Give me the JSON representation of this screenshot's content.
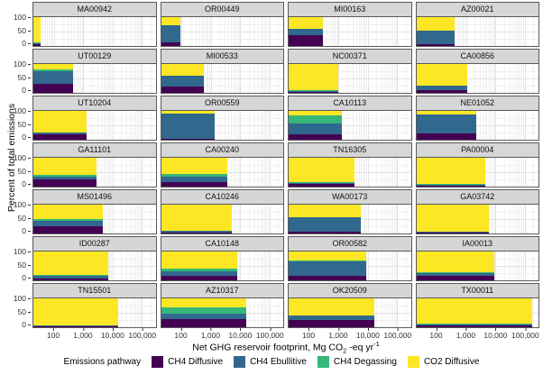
{
  "chart_data": {
    "type": "bar",
    "variant": "faceted-horizontal-stacked",
    "ylabel": "Percent of total emissions",
    "xlabel": "Net GHG reservoir footprint, Mg CO2 -eq yr-1",
    "xlabel_parts": {
      "prefix": "Net GHG reservoir footprint, Mg CO",
      "sub": "2",
      "mid": " -eq yr",
      "sup": "-1"
    },
    "x_scale": {
      "type": "log",
      "min": 20,
      "max": 300000,
      "ticks": [
        100,
        1000,
        10000,
        100000
      ],
      "tick_labels": [
        "100",
        "1,000",
        "10,000",
        "100,000"
      ],
      "grid": "on"
    },
    "y_scale": {
      "min": 0,
      "max": 100,
      "ticks": [
        0,
        50,
        100
      ],
      "tick_labels": [
        "100",
        "50",
        "0"
      ],
      "minor_ticks": [
        25,
        75
      ]
    },
    "legend": {
      "title": "Emissions pathway",
      "position": "bottom",
      "items": [
        {
          "key": "ch4_diffusive",
          "label": "CH4 Diffusive",
          "color": "#440154"
        },
        {
          "key": "ch4_ebullitive",
          "label": "CH4 Ebullitive",
          "color": "#31688E"
        },
        {
          "key": "ch4_degassing",
          "label": "CH4 Degassing",
          "color": "#35B779"
        },
        {
          "key": "co2_diffusive",
          "label": "CO2 Diffusive",
          "color": "#FDE725"
        }
      ]
    },
    "stack_order_bottom_to_top": [
      "ch4_diffusive",
      "ch4_ebullitive",
      "ch4_degassing",
      "co2_diffusive"
    ],
    "facets": [
      {
        "id": "MA00942",
        "footprint": 35,
        "stack": {
          "ch4_diffusive": 5,
          "ch4_ebullitive": 4,
          "ch4_degassing": 4,
          "co2_diffusive": 87
        }
      },
      {
        "id": "OR00449",
        "footprint": 90,
        "stack": {
          "ch4_diffusive": 11,
          "ch4_ebullitive": 62,
          "ch4_degassing": 0,
          "co2_diffusive": 27
        }
      },
      {
        "id": "MI00163",
        "footprint": 290,
        "stack": {
          "ch4_diffusive": 38,
          "ch4_ebullitive": 22,
          "ch4_degassing": 0,
          "co2_diffusive": 40
        }
      },
      {
        "id": "AZ00021",
        "footprint": 420,
        "stack": {
          "ch4_diffusive": 7,
          "ch4_ebullitive": 45,
          "ch4_degassing": 0,
          "co2_diffusive": 48
        }
      },
      {
        "id": "UT00129",
        "footprint": 450,
        "stack": {
          "ch4_diffusive": 30,
          "ch4_ebullitive": 44,
          "ch4_degassing": 7,
          "co2_diffusive": 19
        }
      },
      {
        "id": "MI00533",
        "footprint": 600,
        "stack": {
          "ch4_diffusive": 22,
          "ch4_ebullitive": 38,
          "ch4_degassing": 0,
          "co2_diffusive": 40
        }
      },
      {
        "id": "NC00371",
        "footprint": 1000,
        "stack": {
          "ch4_diffusive": 4,
          "ch4_ebullitive": 3,
          "ch4_degassing": 3,
          "co2_diffusive": 90
        }
      },
      {
        "id": "CA00856",
        "footprint": 1100,
        "stack": {
          "ch4_diffusive": 9,
          "ch4_ebullitive": 16,
          "ch4_degassing": 0,
          "co2_diffusive": 75
        }
      },
      {
        "id": "UT10204",
        "footprint": 1300,
        "stack": {
          "ch4_diffusive": 20,
          "ch4_ebullitive": 6,
          "ch4_degassing": 0,
          "co2_diffusive": 74
        }
      },
      {
        "id": "OR00559",
        "footprint": 1400,
        "stack": {
          "ch4_diffusive": 2,
          "ch4_ebullitive": 90,
          "ch4_degassing": 0,
          "co2_diffusive": 8
        }
      },
      {
        "id": "CA10113",
        "footprint": 1300,
        "stack": {
          "ch4_diffusive": 20,
          "ch4_ebullitive": 35,
          "ch4_degassing": 30,
          "co2_diffusive": 15
        }
      },
      {
        "id": "NE01052",
        "footprint": 2300,
        "stack": {
          "ch4_diffusive": 22,
          "ch4_ebullitive": 66,
          "ch4_degassing": 0,
          "co2_diffusive": 12
        }
      },
      {
        "id": "GA11101",
        "footprint": 2800,
        "stack": {
          "ch4_diffusive": 24,
          "ch4_ebullitive": 10,
          "ch4_degassing": 8,
          "co2_diffusive": 58
        }
      },
      {
        "id": "CA00240",
        "footprint": 3700,
        "stack": {
          "ch4_diffusive": 16,
          "ch4_ebullitive": 18,
          "ch4_degassing": 10,
          "co2_diffusive": 56
        }
      },
      {
        "id": "TN16305",
        "footprint": 3500,
        "stack": {
          "ch4_diffusive": 8,
          "ch4_ebullitive": 3,
          "ch4_degassing": 5,
          "co2_diffusive": 84
        }
      },
      {
        "id": "PA00004",
        "footprint": 4500,
        "stack": {
          "ch4_diffusive": 3,
          "ch4_ebullitive": 3,
          "ch4_degassing": 2,
          "co2_diffusive": 92
        }
      },
      {
        "id": "MS01496",
        "footprint": 4800,
        "stack": {
          "ch4_diffusive": 26,
          "ch4_ebullitive": 18,
          "ch4_degassing": 6,
          "co2_diffusive": 50
        }
      },
      {
        "id": "CA10246",
        "footprint": 5300,
        "stack": {
          "ch4_diffusive": 4,
          "ch4_ebullitive": 4,
          "ch4_degassing": 0,
          "co2_diffusive": 92
        }
      },
      {
        "id": "WA00173",
        "footprint": 6000,
        "stack": {
          "ch4_diffusive": 5,
          "ch4_ebullitive": 52,
          "ch4_degassing": 0,
          "co2_diffusive": 43
        }
      },
      {
        "id": "GA03742",
        "footprint": 6000,
        "stack": {
          "ch4_diffusive": 2,
          "ch4_ebullitive": 4,
          "ch4_degassing": 0,
          "co2_diffusive": 94
        }
      },
      {
        "id": "ID00287",
        "footprint": 7300,
        "stack": {
          "ch4_diffusive": 6,
          "ch4_ebullitive": 9,
          "ch4_degassing": 3,
          "co2_diffusive": 82
        }
      },
      {
        "id": "CA10148",
        "footprint": 7800,
        "stack": {
          "ch4_diffusive": 14,
          "ch4_ebullitive": 18,
          "ch4_degassing": 8,
          "co2_diffusive": 60
        }
      },
      {
        "id": "OR00582",
        "footprint": 8700,
        "stack": {
          "ch4_diffusive": 14,
          "ch4_ebullitive": 52,
          "ch4_degassing": 4,
          "co2_diffusive": 30
        }
      },
      {
        "id": "IA00013",
        "footprint": 9300,
        "stack": {
          "ch4_diffusive": 15,
          "ch4_ebullitive": 10,
          "ch4_degassing": 2,
          "co2_diffusive": 73
        }
      },
      {
        "id": "TN15501",
        "footprint": 15500,
        "stack": {
          "ch4_diffusive": 2,
          "ch4_ebullitive": 3,
          "ch4_degassing": 2,
          "co2_diffusive": 93
        }
      },
      {
        "id": "AZ10317",
        "footprint": 16000,
        "stack": {
          "ch4_diffusive": 28,
          "ch4_ebullitive": 18,
          "ch4_degassing": 22,
          "co2_diffusive": 32
        }
      },
      {
        "id": "OK20509",
        "footprint": 17000,
        "stack": {
          "ch4_diffusive": 24,
          "ch4_ebullitive": 16,
          "ch4_degassing": 0,
          "co2_diffusive": 60
        }
      },
      {
        "id": "TX00011",
        "footprint": 180000,
        "stack": {
          "ch4_diffusive": 6,
          "ch4_ebullitive": 3,
          "ch4_degassing": 4,
          "co2_diffusive": 87
        }
      }
    ]
  }
}
